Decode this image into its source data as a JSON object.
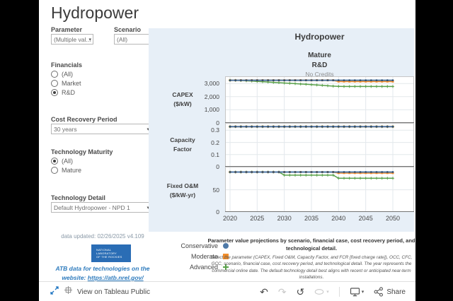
{
  "title": "Hydropower",
  "sidebar": {
    "parameter_label": "Parameter",
    "parameter_value": "(Multiple val...",
    "scenario_label": "Scenario",
    "scenario_value": "(All)",
    "financials_label": "Financials",
    "financials_options": [
      "(All)",
      "Market",
      "R&D"
    ],
    "financials_selected": "R&D",
    "cost_recovery_label": "Cost Recovery Period",
    "cost_recovery_value": "30 years",
    "maturity_label": "Technology Maturity",
    "maturity_options": [
      "(All)",
      "Mature"
    ],
    "maturity_selected": "(All)",
    "tech_detail_label": "Technology Detail",
    "tech_detail_value": "Default Hydropower - NPD 1",
    "data_updated": "data updated: 02/26/2025 v4.109",
    "logo_lines": [
      "NATIONAL",
      "LABORATORY",
      "OF THE ROCKIES"
    ],
    "atb_line1": "ATB data for technologies on the",
    "atb_line2_prefix": "website: ",
    "atb_link": "https://atb.nrel.gov/"
  },
  "chart_header": {
    "title": "Hydropower",
    "maturity": "Mature",
    "case": "R&D",
    "credits": "No Credits"
  },
  "row_labels": [
    {
      "line1": "CAPEX",
      "line2": "($/kW)"
    },
    {
      "line1": "Capacity",
      "line2": "Factor"
    },
    {
      "line1": "Fixed O&M",
      "line2": "($/kW-yr)"
    }
  ],
  "legend": [
    {
      "label": "Conservative",
      "color": "#4e79a7",
      "marker": "circle"
    },
    {
      "label": "Moderate",
      "color": "#f28e2b",
      "marker": "square"
    },
    {
      "label": "Advanced",
      "color": "#59a14a",
      "marker": "plus"
    }
  ],
  "description": {
    "heading": "Parameter value projections by scenario, financial case, cost recovery period, and technological detail.",
    "body": "Select the parameter (CAPEX, Fixed O&M, Capacity Factor, and FCR [fixed charge rate]), OCC, CFC, GCC, scenario, financial case, cost recovery period, and technological detail. The year represents the commercial online date. The default technology detail best aligns with recent or anticipated near-term installations."
  },
  "footer": {
    "view_text": "View on Tableau Public",
    "share_label": "Share"
  },
  "chart_data": [
    {
      "type": "line",
      "title": "CAPEX ($/kW)",
      "ylim": [
        0,
        3550
      ],
      "yticks": [
        0,
        1000,
        2000,
        3000
      ],
      "ytick_labels": [
        "0",
        "1,000",
        "2,000",
        "3,000"
      ],
      "xticks": [
        2020,
        2025,
        2030,
        2035,
        2040,
        2045,
        2050
      ],
      "x": [
        2020,
        2021,
        2022,
        2023,
        2024,
        2025,
        2026,
        2027,
        2028,
        2029,
        2030,
        2031,
        2032,
        2033,
        2034,
        2035,
        2036,
        2037,
        2038,
        2039,
        2040,
        2041,
        2042,
        2043,
        2044,
        2045,
        2046,
        2047,
        2048,
        2049,
        2050
      ],
      "series": [
        {
          "name": "Conservative",
          "color": "#4e79a7",
          "marker": "circle",
          "values": [
            3250,
            3250,
            3250,
            3250,
            3250,
            3250,
            3250,
            3250,
            3250,
            3250,
            3250,
            3250,
            3250,
            3250,
            3250,
            3250,
            3250,
            3250,
            3250,
            3250,
            3250,
            3250,
            3250,
            3250,
            3250,
            3250,
            3250,
            3250,
            3250,
            3250,
            3250
          ]
        },
        {
          "name": "Moderate",
          "color": "#f28e2b",
          "marker": "square",
          "values": [
            3250,
            3250,
            3250,
            3250,
            3250,
            3250,
            3250,
            3250,
            3250,
            3250,
            3250,
            3250,
            3250,
            3250,
            3250,
            3250,
            3250,
            3250,
            3250,
            3250,
            3160,
            3160,
            3160,
            3160,
            3160,
            3160,
            3160,
            3160,
            3160,
            3160,
            3160
          ]
        },
        {
          "name": "Advanced",
          "color": "#59a14a",
          "marker": "plus",
          "values": [
            3250,
            3240,
            3225,
            3205,
            3185,
            3165,
            3140,
            3115,
            3090,
            3065,
            3040,
            3015,
            2990,
            2965,
            2940,
            2915,
            2890,
            2860,
            2830,
            2805,
            2785,
            2775,
            2775,
            2775,
            2775,
            2775,
            2775,
            2775,
            2775,
            2775,
            2775
          ]
        }
      ]
    },
    {
      "type": "line",
      "title": "Capacity Factor",
      "ylim": [
        0,
        0.36
      ],
      "yticks": [
        0,
        0.1,
        0.2,
        0.3
      ],
      "ytick_labels": [
        "0",
        "0.1",
        "0.2",
        "0.3"
      ],
      "xticks": [
        2020,
        2025,
        2030,
        2035,
        2040,
        2045,
        2050
      ],
      "x": [
        2020,
        2021,
        2022,
        2023,
        2024,
        2025,
        2026,
        2027,
        2028,
        2029,
        2030,
        2031,
        2032,
        2033,
        2034,
        2035,
        2036,
        2037,
        2038,
        2039,
        2040,
        2041,
        2042,
        2043,
        2044,
        2045,
        2046,
        2047,
        2048,
        2049,
        2050
      ],
      "series": [
        {
          "name": "Conservative",
          "color": "#4e79a7",
          "marker": "circle",
          "values": [
            0.33,
            0.33,
            0.33,
            0.33,
            0.33,
            0.33,
            0.33,
            0.33,
            0.33,
            0.33,
            0.33,
            0.33,
            0.33,
            0.33,
            0.33,
            0.33,
            0.33,
            0.33,
            0.33,
            0.33,
            0.33,
            0.33,
            0.33,
            0.33,
            0.33,
            0.33,
            0.33,
            0.33,
            0.33,
            0.33,
            0.33
          ]
        },
        {
          "name": "Moderate",
          "color": "#f28e2b",
          "marker": "square",
          "values": [
            0.33,
            0.33,
            0.33,
            0.33,
            0.33,
            0.33,
            0.33,
            0.33,
            0.33,
            0.33,
            0.33,
            0.33,
            0.33,
            0.33,
            0.33,
            0.33,
            0.33,
            0.33,
            0.33,
            0.33,
            0.33,
            0.33,
            0.33,
            0.33,
            0.33,
            0.33,
            0.33,
            0.33,
            0.33,
            0.33,
            0.33
          ]
        },
        {
          "name": "Advanced",
          "color": "#59a14a",
          "marker": "plus",
          "values": [
            0.33,
            0.33,
            0.33,
            0.33,
            0.33,
            0.33,
            0.33,
            0.33,
            0.33,
            0.33,
            0.33,
            0.33,
            0.33,
            0.33,
            0.33,
            0.33,
            0.33,
            0.33,
            0.33,
            0.33,
            0.33,
            0.33,
            0.33,
            0.33,
            0.33,
            0.33,
            0.33,
            0.33,
            0.33,
            0.33,
            0.33
          ]
        }
      ]
    },
    {
      "type": "line",
      "title": "Fixed O&M ($/kW-yr)",
      "ylim": [
        0,
        102
      ],
      "yticks": [
        0,
        50
      ],
      "ytick_labels": [
        "0",
        "50"
      ],
      "xticks": [
        2020,
        2025,
        2030,
        2035,
        2040,
        2045,
        2050
      ],
      "x": [
        2020,
        2021,
        2022,
        2023,
        2024,
        2025,
        2026,
        2027,
        2028,
        2029,
        2030,
        2031,
        2032,
        2033,
        2034,
        2035,
        2036,
        2037,
        2038,
        2039,
        2040,
        2041,
        2042,
        2043,
        2044,
        2045,
        2046,
        2047,
        2048,
        2049,
        2050
      ],
      "series": [
        {
          "name": "Conservative",
          "color": "#4e79a7",
          "marker": "circle",
          "values": [
            90,
            90,
            90,
            90,
            90,
            90,
            90,
            90,
            90,
            90,
            90,
            90,
            90,
            90,
            90,
            90,
            90,
            90,
            90,
            90,
            90,
            90,
            90,
            90,
            90,
            90,
            90,
            90,
            90,
            90,
            90
          ]
        },
        {
          "name": "Moderate",
          "color": "#f28e2b",
          "marker": "square",
          "values": [
            90,
            90,
            90,
            90,
            90,
            90,
            90,
            90,
            90,
            90,
            90,
            90,
            90,
            90,
            90,
            90,
            90,
            90,
            90,
            90,
            88,
            88,
            88,
            88,
            88,
            88,
            88,
            88,
            88,
            88,
            88
          ]
        },
        {
          "name": "Advanced",
          "color": "#59a14a",
          "marker": "plus",
          "values": [
            90,
            90,
            90,
            90,
            90,
            90,
            90,
            90,
            90,
            90,
            83,
            83,
            83,
            83,
            83,
            83,
            83,
            83,
            83,
            83,
            76,
            76,
            76,
            76,
            76,
            76,
            76,
            76,
            76,
            76,
            76
          ]
        }
      ]
    }
  ]
}
